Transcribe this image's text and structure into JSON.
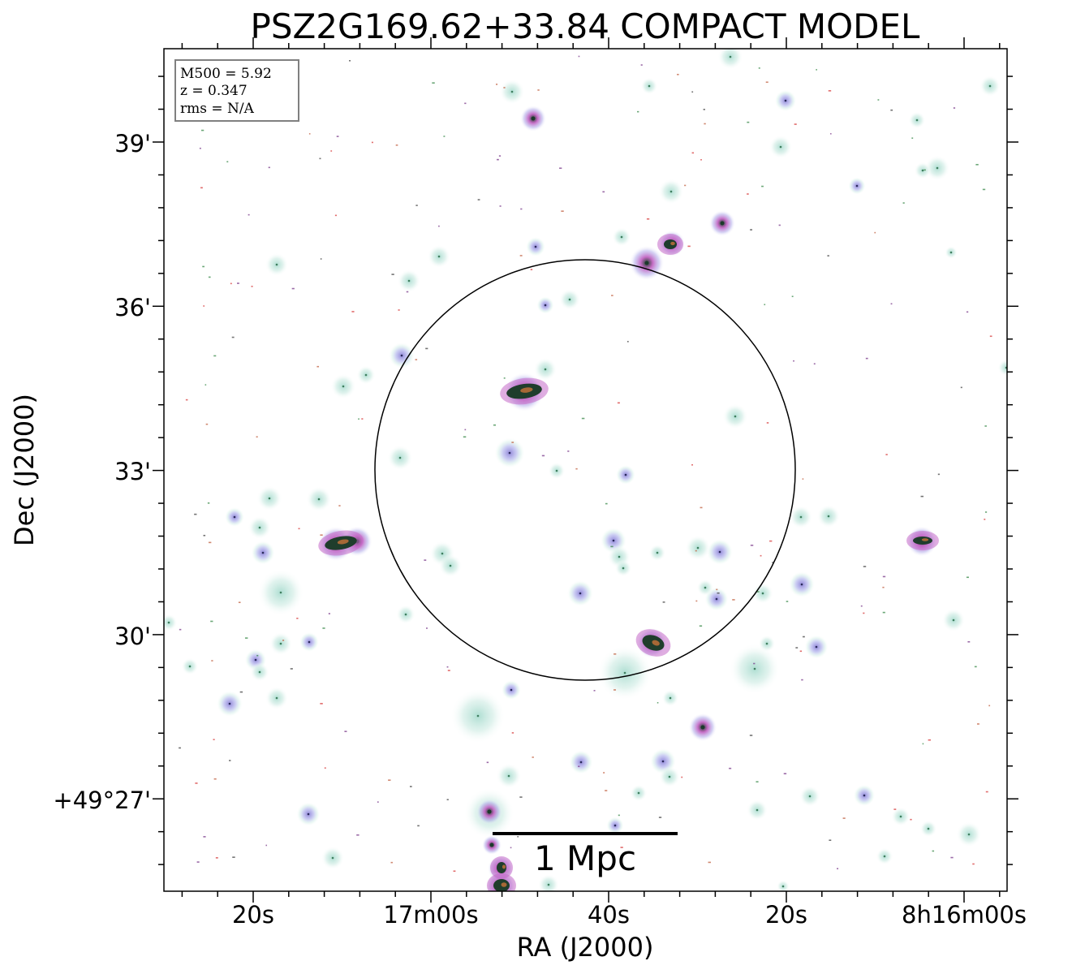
{
  "title": "PSZ2G169.62+33.84 COMPACT MODEL",
  "info_box": {
    "mass_line": "M500 = 5.92",
    "redshift_line": "z = 0.347",
    "rms_line": "rms = N/A"
  },
  "axes": {
    "x_label": "RA (J2000)",
    "y_label": "Dec (J2000)",
    "x_ticks": [
      "20s",
      "17m00s",
      "40s",
      "20s",
      "8h16m00s"
    ],
    "y_ticks": [
      "39'",
      "36'",
      "33'",
      "30'",
      "+49°27'"
    ]
  },
  "scale_bar": {
    "label": "1 Mpc"
  },
  "colors": {
    "glow": "#bfe6dc",
    "magenta": "#c46ac9",
    "core": "#1a3a2a",
    "red": "#d73b3b",
    "frame": "#000000"
  }
}
